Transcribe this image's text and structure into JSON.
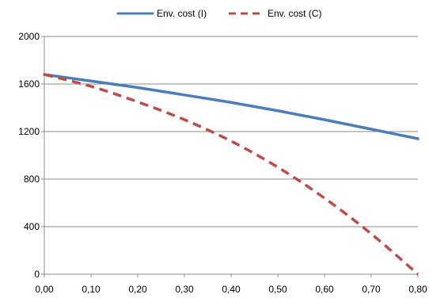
{
  "chart_data": {
    "type": "line",
    "title": "",
    "xlabel": "",
    "ylabel": "",
    "xlim": [
      0,
      0.8
    ],
    "ylim": [
      0,
      2000
    ],
    "x_ticks": [
      "0,00",
      "0,10",
      "0,20",
      "0,30",
      "0,40",
      "0,50",
      "0,60",
      "0,70",
      "0,80"
    ],
    "y_ticks": [
      "0",
      "400",
      "800",
      "1200",
      "1600",
      "2000"
    ],
    "y_tick_values": [
      0,
      400,
      800,
      1200,
      1600,
      2000
    ],
    "grid": "horizontal",
    "legend_position": "top",
    "x": [
      0,
      0.1,
      0.2,
      0.3,
      0.4,
      0.5,
      0.6,
      0.7,
      0.8
    ],
    "series": [
      {
        "name": "Env. cost (I)",
        "color": "#4a7ebb",
        "style": "solid",
        "values": [
          1680,
          1625,
          1570,
          1508,
          1445,
          1375,
          1300,
          1220,
          1140
        ]
      },
      {
        "name": "Env. cost (C)",
        "color": "#be4b48",
        "style": "dashed",
        "values": [
          1680,
          1580,
          1450,
          1300,
          1120,
          900,
          640,
          340,
          0
        ]
      }
    ]
  }
}
